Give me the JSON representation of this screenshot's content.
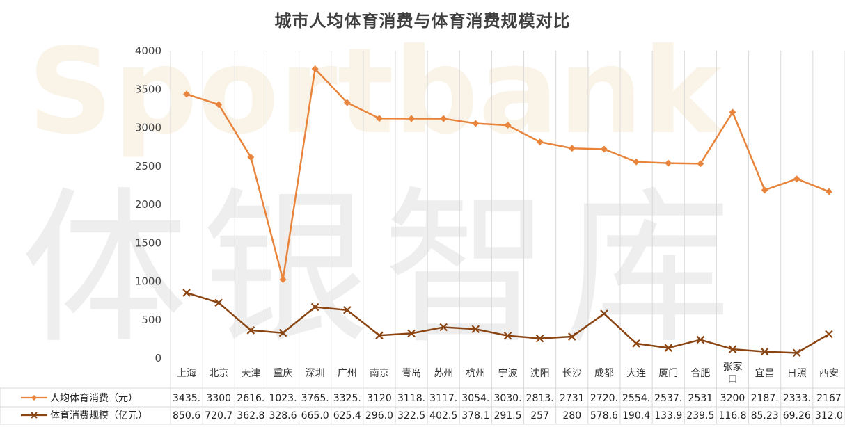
{
  "chart_data": {
    "type": "line",
    "title": "城市人均体育消费与体育消费规模对比",
    "watermark": [
      "Sportbank",
      "体银智库"
    ],
    "categories": [
      "上海",
      "北京",
      "天津",
      "重庆",
      "深圳",
      "广州",
      "南京",
      "青岛",
      "苏州",
      "杭州",
      "宁波",
      "沈阳",
      "长沙",
      "成都",
      "大连",
      "厦门",
      "合肥",
      "张家口",
      "宜昌",
      "日照",
      "西安"
    ],
    "series": [
      {
        "name": "人均体育消费（元）",
        "color": "#e8843b",
        "marker": "diamond",
        "values": [
          3435,
          3300,
          2616,
          1023,
          3765,
          3325,
          3120,
          3118,
          3117,
          3054,
          3030,
          2813,
          2731,
          2720,
          2554,
          2537,
          2531,
          3200,
          2187,
          2333,
          2167
        ],
        "table_labels": [
          "3435.",
          "3300",
          "2616.",
          "1023.",
          "3765.",
          "3325.",
          "3120",
          "3118.",
          "3117.",
          "3054.",
          "3030.",
          "2813.",
          "2731",
          "2720.",
          "2554.",
          "2537.",
          "2531",
          "3200",
          "2187.",
          "2333.",
          "2167"
        ]
      },
      {
        "name": "体育消费规模（亿元）",
        "color": "#8b4513",
        "marker": "x",
        "values": [
          850.6,
          720.7,
          362.8,
          328.6,
          665.0,
          625.4,
          296.0,
          322.5,
          402.5,
          378.1,
          291.5,
          257,
          280,
          578.6,
          190.4,
          133.9,
          239.5,
          116.8,
          85.23,
          69.26,
          312.0
        ],
        "table_labels": [
          "850.6",
          "720.7",
          "362.8",
          "328.6",
          "665.0",
          "625.4",
          "296.0",
          "322.5",
          "402.5",
          "378.1",
          "291.5",
          "257",
          "280",
          "578.6",
          "190.4",
          "133.9",
          "239.5",
          "116.8",
          "85.23",
          "69.26",
          "312.0"
        ]
      }
    ],
    "yticks": [
      0,
      500,
      1000,
      1500,
      2000,
      2500,
      3000,
      3500,
      4000
    ],
    "ylim": [
      0,
      4000
    ],
    "grid": "vertical",
    "legend": "data-table"
  }
}
